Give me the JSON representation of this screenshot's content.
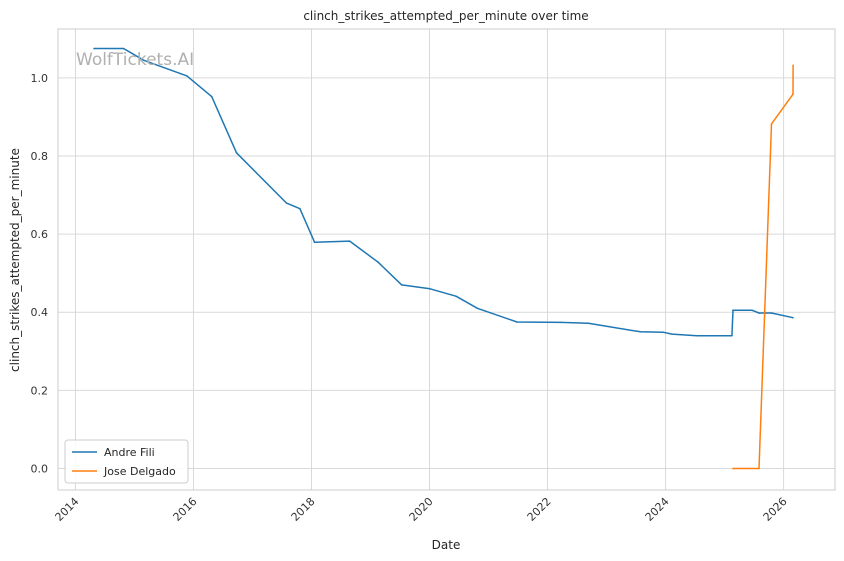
{
  "chart_data": {
    "type": "line",
    "title": "clinch_strikes_attempted_per_minute over time",
    "xlabel": "Date",
    "ylabel": "clinch_strikes_attempted_per_minute",
    "watermark": "WolfTickets.AI",
    "xlim": [
      "2013-09-15",
      "2026-11-15"
    ],
    "ylim": [
      -0.055,
      1.125
    ],
    "x_ticks": [
      "2014",
      "2016",
      "2018",
      "2020",
      "2022",
      "2024",
      "2026"
    ],
    "y_ticks": [
      "0.0",
      "0.2",
      "0.4",
      "0.6",
      "0.8",
      "1.0"
    ],
    "grid": true,
    "legend_position": "lower-left",
    "series": [
      {
        "name": "Andre Fili",
        "color": "#1f77b4",
        "points": [
          [
            "2014-04-26",
            1.075
          ],
          [
            "2014-10-25",
            1.075
          ],
          [
            "2015-02-28",
            1.045
          ],
          [
            "2015-11-21",
            1.005
          ],
          [
            "2016-04-23",
            0.952
          ],
          [
            "2016-09-24",
            0.808
          ],
          [
            "2017-07-29",
            0.68
          ],
          [
            "2017-10-21",
            0.665
          ],
          [
            "2018-01-20",
            0.579
          ],
          [
            "2018-08-25",
            0.582
          ],
          [
            "2019-02-17",
            0.528
          ],
          [
            "2019-07-13",
            0.47
          ],
          [
            "2020-01-04",
            0.46
          ],
          [
            "2020-06-13",
            0.441
          ],
          [
            "2020-10-24",
            0.41
          ],
          [
            "2021-06-26",
            0.375
          ],
          [
            "2022-03-26",
            0.374
          ],
          [
            "2022-09-10",
            0.372
          ],
          [
            "2023-07-29",
            0.35
          ],
          [
            "2023-12-16",
            0.349
          ],
          [
            "2024-02-10",
            0.344
          ],
          [
            "2024-07-13",
            0.34
          ],
          [
            "2025-02-15",
            0.34
          ],
          [
            "2025-02-22",
            0.405
          ],
          [
            "2025-06-21",
            0.405
          ],
          [
            "2025-08-02",
            0.398
          ],
          [
            "2025-10-18",
            0.398
          ],
          [
            "2026-02-28",
            0.386
          ]
        ]
      },
      {
        "name": "Jose Delgado",
        "color": "#ff7f0e",
        "points": [
          [
            "2025-02-22",
            0.0
          ],
          [
            "2025-08-02",
            0.0
          ],
          [
            "2025-10-18",
            0.882
          ],
          [
            "2026-02-28",
            0.958
          ],
          [
            "2026-03-01",
            1.032
          ]
        ]
      }
    ]
  }
}
